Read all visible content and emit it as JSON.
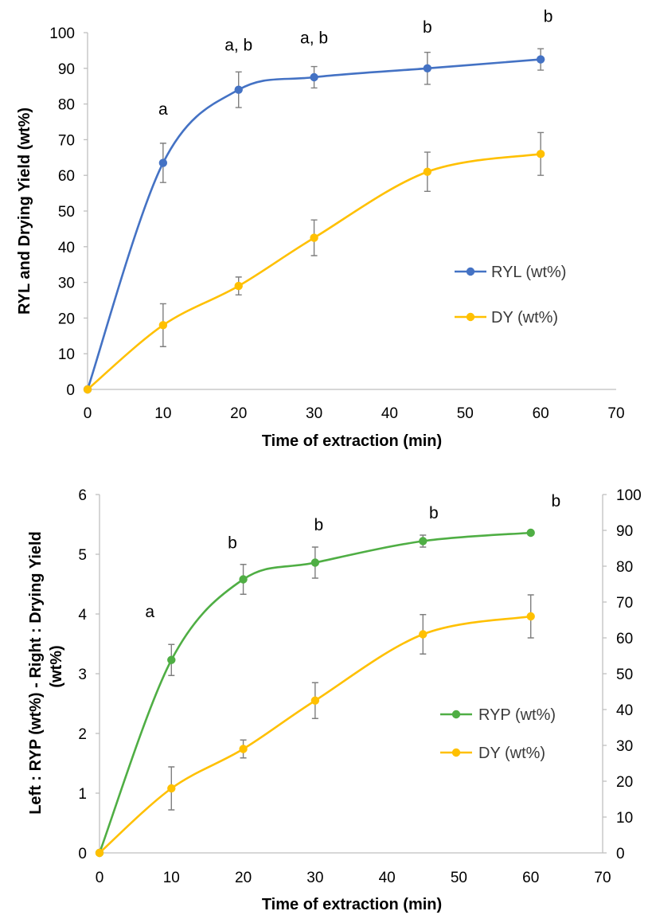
{
  "colors": {
    "RYL": "#4472c4",
    "DY": "#ffc000",
    "RYP": "#4fae44"
  },
  "chart_data": [
    {
      "type": "line",
      "xlabel": "Time of extraction (min)",
      "ylabel": "RYL and Drying Yield (wt%)",
      "xlim": [
        0,
        70
      ],
      "ylim": [
        0,
        100
      ],
      "xticks": [
        "0",
        "10",
        "20",
        "30",
        "40",
        "50",
        "60",
        "70"
      ],
      "yticks": [
        "0",
        "10",
        "20",
        "30",
        "40",
        "50",
        "60",
        "70",
        "80",
        "90",
        "100"
      ],
      "legend_position": "right",
      "series": [
        {
          "name": "RYL (wt%)",
          "color": "#4472c4",
          "x": [
            0,
            10,
            20,
            30,
            45,
            60
          ],
          "y": [
            0,
            63.5,
            84,
            87.5,
            90,
            92.5
          ],
          "err": [
            0,
            5.5,
            5,
            3,
            4.5,
            3
          ]
        },
        {
          "name": "DY (wt%)",
          "color": "#ffc000",
          "x": [
            0,
            10,
            20,
            30,
            45,
            60
          ],
          "y": [
            0,
            18,
            29,
            42.5,
            61,
            66
          ],
          "err": [
            0,
            6,
            2.5,
            5,
            5.5,
            6
          ]
        }
      ],
      "annotations": [
        {
          "text": "a",
          "x": 10,
          "y": 77
        },
        {
          "text": "a, b",
          "x": 20,
          "y": 95
        },
        {
          "text": "a, b",
          "x": 30,
          "y": 97
        },
        {
          "text": "b",
          "x": 45,
          "y": 100
        },
        {
          "text": "b",
          "x": 61,
          "y": 103
        }
      ]
    },
    {
      "type": "line",
      "xlabel": "Time of extraction (min)",
      "ylabel": "Left : RYP (wt%) - Right : Drying Yield (wt%)",
      "ylabel_lines": [
        "Left : RYP (wt%) - Right : Drying Yield",
        "(wt%)"
      ],
      "xlim": [
        0,
        70
      ],
      "ylim_left": [
        0,
        6
      ],
      "ylim_right": [
        0,
        100
      ],
      "xticks": [
        "0",
        "10",
        "20",
        "30",
        "40",
        "50",
        "60",
        "70"
      ],
      "yticks_left": [
        "0",
        "1",
        "2",
        "3",
        "4",
        "5",
        "6"
      ],
      "yticks_right": [
        "0",
        "10",
        "20",
        "30",
        "40",
        "50",
        "60",
        "70",
        "80",
        "90",
        "100"
      ],
      "legend_position": "right",
      "series": [
        {
          "name": "RYP (wt%)",
          "color": "#4fae44",
          "axis": "left",
          "x": [
            0,
            10,
            20,
            30,
            45,
            60
          ],
          "y": [
            0,
            3.23,
            4.58,
            4.86,
            5.22,
            5.36
          ],
          "err": [
            0,
            0.26,
            0.25,
            0.26,
            0.1,
            0
          ]
        },
        {
          "name": "DY (wt%)",
          "color": "#ffc000",
          "axis": "right",
          "x": [
            0,
            10,
            20,
            30,
            45,
            60
          ],
          "y": [
            0,
            18,
            29,
            42.5,
            61,
            66
          ],
          "err": [
            0,
            6,
            2.5,
            5,
            5.5,
            6
          ]
        }
      ],
      "annotations": [
        {
          "text": "a",
          "x": 7,
          "y": 3.95
        },
        {
          "text": "b",
          "x": 18.5,
          "y": 5.1
        },
        {
          "text": "b",
          "x": 30.5,
          "y": 5.4
        },
        {
          "text": "b",
          "x": 46.5,
          "y": 5.6
        },
        {
          "text": "b",
          "x": 63.5,
          "y": 5.8
        }
      ]
    }
  ]
}
